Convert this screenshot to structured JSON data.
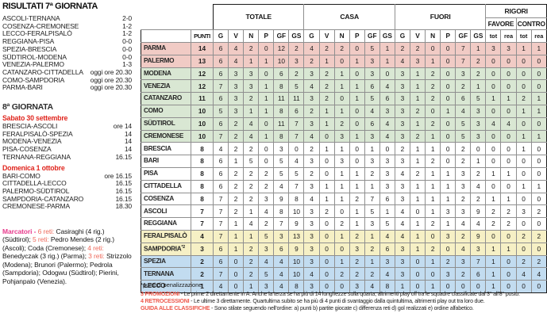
{
  "results": {
    "title": "RISULTATI 7ª GIORNATA",
    "matches": [
      {
        "teams": "ASCOLI-TERNANA",
        "score": "2-0"
      },
      {
        "teams": "COSENZA-CREMONESE",
        "score": "1-2"
      },
      {
        "teams": "LECCO-FERALPISALÒ",
        "score": "1-2"
      },
      {
        "teams": "REGGIANA-PISA",
        "score": "0-0"
      },
      {
        "teams": "SPEZIA-BRESCIA",
        "score": "0-0"
      },
      {
        "teams": "SÜDTIROL-MODENA",
        "score": "0-0"
      },
      {
        "teams": "VENEZIA-PALERMO",
        "score": "1-3"
      },
      {
        "teams": "CATANZARO-CITTADELLA",
        "score": "oggi ore 20.30"
      },
      {
        "teams": "COMO-SAMPDORIA",
        "score": "oggi ore 20.30"
      },
      {
        "teams": "PARMA-BARI",
        "score": "oggi ore 20.30"
      }
    ]
  },
  "next_round": {
    "title": "8ª GIORNATA",
    "days": [
      {
        "label": "Sabato 30 settembre",
        "fixtures": [
          {
            "teams": "BRESCIA-ASCOLI",
            "time": "ore 14"
          },
          {
            "teams": "FERALPISALÒ-SPEZIA",
            "time": "14"
          },
          {
            "teams": "MODENA-VENEZIA",
            "time": "14"
          },
          {
            "teams": "PISA-COSENZA",
            "time": "14"
          },
          {
            "teams": "TERNANA-REGGIANA",
            "time": "16.15"
          }
        ]
      },
      {
        "label": "Domenica 1 ottobre",
        "fixtures": [
          {
            "teams": "BARI-COMO",
            "time": "ore 16.15"
          },
          {
            "teams": "CITTADELLA-LECCO",
            "time": "16.15"
          },
          {
            "teams": "PALERMO-SÜDTIROL",
            "time": "16.15"
          },
          {
            "teams": "SAMPDORIA-CATANZARO",
            "time": "16.15"
          },
          {
            "teams": "CREMONESE-PARMA",
            "time": "18.30"
          }
        ]
      }
    ]
  },
  "scorers": {
    "label": "Marcatori -",
    "entries": [
      {
        "count": "6 reti:",
        "names": "Casiraghi (4 rig.) (Südtirol);"
      },
      {
        "count": "5 reti:",
        "names": "Pedro Mendes (2 rig.) (Ascoli); Coda (Cremonese);"
      },
      {
        "count": "4 reti:",
        "names": "Benedyczak (3 rig.) (Parma);"
      },
      {
        "count": "3 reti:",
        "names": "Strizzolo (Modena); Brunori (Palermo); Pedrola (Sampdoria); Odogwu (Südtirol); Pierini, Pohjanpalo (Venezia)."
      }
    ]
  },
  "standings": {
    "groups": [
      "TOTALE",
      "CASA",
      "FUORI",
      "RIGORI"
    ],
    "rigori_sub": [
      "FAVORE",
      "CONTRO"
    ],
    "col_punti": "PUNTI",
    "stat_cols": [
      "G",
      "V",
      "N",
      "P",
      "GF",
      "GS"
    ],
    "rigori_cols": [
      "tot",
      "rea",
      "tot",
      "rea"
    ],
    "zone_colors": {
      "promotion": "#f1cbc5",
      "playoff": "#d9e7d3",
      "mid": "#ffffff",
      "playout": "#f6f0c5",
      "relegation": "#c2dcf0"
    },
    "rows": [
      {
        "team": "PARMA",
        "sup": "",
        "punti": "14",
        "zone": "promotion",
        "cells": [
          6,
          4,
          2,
          0,
          12,
          2,
          4,
          2,
          2,
          0,
          5,
          1,
          2,
          2,
          0,
          0,
          7,
          1,
          3,
          3,
          1,
          1
        ]
      },
      {
        "team": "PALERMO",
        "sup": "",
        "punti": "13",
        "zone": "promotion",
        "cells": [
          6,
          4,
          1,
          1,
          10,
          3,
          2,
          1,
          0,
          1,
          3,
          1,
          4,
          3,
          1,
          0,
          7,
          2,
          0,
          0,
          0,
          0
        ]
      },
      {
        "team": "MODENA",
        "sup": "",
        "punti": "12",
        "zone": "playoff",
        "cells": [
          6,
          3,
          3,
          0,
          6,
          2,
          3,
          2,
          1,
          0,
          3,
          0,
          3,
          1,
          2,
          0,
          3,
          2,
          0,
          0,
          0,
          0
        ]
      },
      {
        "team": "VENEZIA",
        "sup": "",
        "punti": "12",
        "zone": "playoff",
        "cells": [
          7,
          3,
          3,
          1,
          8,
          5,
          4,
          2,
          1,
          1,
          6,
          4,
          3,
          1,
          2,
          0,
          2,
          1,
          0,
          0,
          0,
          0
        ]
      },
      {
        "team": "CATANZARO",
        "sup": "",
        "punti": "11",
        "zone": "playoff",
        "cells": [
          6,
          3,
          2,
          1,
          11,
          11,
          3,
          2,
          0,
          1,
          5,
          6,
          3,
          1,
          2,
          0,
          6,
          5,
          1,
          1,
          2,
          1
        ]
      },
      {
        "team": "COMO",
        "sup": "",
        "punti": "10",
        "zone": "playoff",
        "cells": [
          5,
          3,
          1,
          1,
          8,
          6,
          2,
          1,
          1,
          0,
          4,
          3,
          3,
          2,
          0,
          1,
          4,
          3,
          0,
          0,
          1,
          1
        ]
      },
      {
        "team": "SÜDTIROL",
        "sup": "",
        "punti": "10",
        "zone": "playoff",
        "cells": [
          6,
          2,
          4,
          0,
          11,
          7,
          3,
          1,
          2,
          0,
          6,
          4,
          3,
          1,
          2,
          0,
          5,
          3,
          4,
          4,
          0,
          0
        ]
      },
      {
        "team": "CREMONESE",
        "sup": "",
        "punti": "10",
        "zone": "playoff",
        "cells": [
          7,
          2,
          4,
          1,
          8,
          7,
          4,
          0,
          3,
          1,
          3,
          4,
          3,
          2,
          1,
          0,
          5,
          3,
          0,
          0,
          1,
          1
        ]
      },
      {
        "team": "BRESCIA",
        "sup": "",
        "punti": "8",
        "zone": "mid",
        "cells": [
          4,
          2,
          2,
          0,
          3,
          0,
          2,
          1,
          1,
          0,
          1,
          0,
          2,
          1,
          1,
          0,
          2,
          0,
          0,
          0,
          1,
          0
        ]
      },
      {
        "team": "BARI",
        "sup": "",
        "punti": "8",
        "zone": "mid",
        "cells": [
          6,
          1,
          5,
          0,
          5,
          4,
          3,
          0,
          3,
          0,
          3,
          3,
          3,
          1,
          2,
          0,
          2,
          1,
          0,
          0,
          0,
          0
        ]
      },
      {
        "team": "PISA",
        "sup": "",
        "punti": "8",
        "zone": "mid",
        "cells": [
          6,
          2,
          2,
          2,
          5,
          5,
          2,
          0,
          1,
          1,
          2,
          3,
          4,
          2,
          1,
          1,
          3,
          2,
          1,
          1,
          0,
          0
        ]
      },
      {
        "team": "CITTADELLA",
        "sup": "",
        "punti": "8",
        "zone": "mid",
        "cells": [
          6,
          2,
          2,
          2,
          4,
          7,
          3,
          1,
          1,
          1,
          1,
          3,
          3,
          1,
          1,
          1,
          3,
          4,
          0,
          0,
          1,
          1
        ]
      },
      {
        "team": "COSENZA",
        "sup": "",
        "punti": "8",
        "zone": "mid",
        "cells": [
          7,
          2,
          2,
          3,
          9,
          8,
          4,
          1,
          1,
          2,
          7,
          6,
          3,
          1,
          1,
          1,
          2,
          2,
          1,
          1,
          0,
          0
        ]
      },
      {
        "team": "ASCOLI",
        "sup": "",
        "punti": "7",
        "zone": "mid",
        "cells": [
          7,
          2,
          1,
          4,
          8,
          10,
          3,
          2,
          0,
          1,
          5,
          1,
          4,
          0,
          1,
          3,
          3,
          9,
          2,
          2,
          3,
          2
        ]
      },
      {
        "team": "REGGIANA",
        "sup": "",
        "punti": "7",
        "zone": "mid",
        "cells": [
          7,
          1,
          4,
          2,
          7,
          9,
          3,
          0,
          2,
          1,
          3,
          5,
          4,
          1,
          2,
          1,
          4,
          4,
          2,
          2,
          0,
          0
        ]
      },
      {
        "team": "FERALPISALÒ",
        "sup": "",
        "punti": "4",
        "zone": "playout",
        "cells": [
          7,
          1,
          1,
          5,
          3,
          13,
          3,
          0,
          1,
          2,
          1,
          4,
          4,
          1,
          0,
          3,
          2,
          9,
          0,
          0,
          2,
          2
        ]
      },
      {
        "team": "SAMPDORIA",
        "sup": "*2",
        "punti": "3",
        "zone": "playout",
        "cells": [
          6,
          1,
          2,
          3,
          6,
          9,
          3,
          0,
          0,
          3,
          2,
          6,
          3,
          1,
          2,
          0,
          4,
          3,
          1,
          1,
          0,
          0
        ]
      },
      {
        "team": "SPEZIA",
        "sup": "",
        "punti": "2",
        "zone": "relegation",
        "cells": [
          6,
          0,
          2,
          4,
          4,
          10,
          3,
          0,
          1,
          2,
          1,
          3,
          3,
          0,
          1,
          2,
          3,
          7,
          1,
          0,
          2,
          2
        ]
      },
      {
        "team": "TERNANA",
        "sup": "",
        "punti": "2",
        "zone": "relegation",
        "cells": [
          7,
          0,
          2,
          5,
          4,
          10,
          4,
          0,
          2,
          2,
          2,
          4,
          3,
          0,
          0,
          3,
          2,
          6,
          1,
          0,
          4,
          4
        ]
      },
      {
        "team": "LECCO",
        "sup": "",
        "punti": "1",
        "zone": "relegation",
        "cells": [
          4,
          0,
          1,
          3,
          4,
          8,
          3,
          0,
          0,
          3,
          4,
          8,
          1,
          0,
          1,
          0,
          0,
          0,
          1,
          0,
          0,
          0
        ]
      }
    ]
  },
  "footnotes": {
    "penalty": "*punti di penalizzazione",
    "notes": [
      {
        "lead": "3 PROMOZIONI",
        "text": " - Le prime 2 direttamente in A. Anche la terza se ha più di 14 lunghezze sulla quarta, altrimenti play off tra le squadre classificate dal 3° all'8° posto."
      },
      {
        "lead": "4 RETROCESSIONI",
        "text": " - Le ultime 3 direttamente. Quartultima subito se ha più di 4 punti di svantaggio dalla quintultima, altrimenti play out tra loro due."
      },
      {
        "lead": "GUIDA ALLE CLASSIFICHE",
        "text": " - Sono stilate seguendo nell'ordine: a) punti b) partite giocate c) differenza reti d) gol realizzati e) ordine alfabetico."
      }
    ]
  },
  "colors": {
    "date_red": "#e0261e",
    "note_red": "#ee584c",
    "marcatori_pink": "#e73a8c",
    "reti_red": "#ee6a5c"
  }
}
